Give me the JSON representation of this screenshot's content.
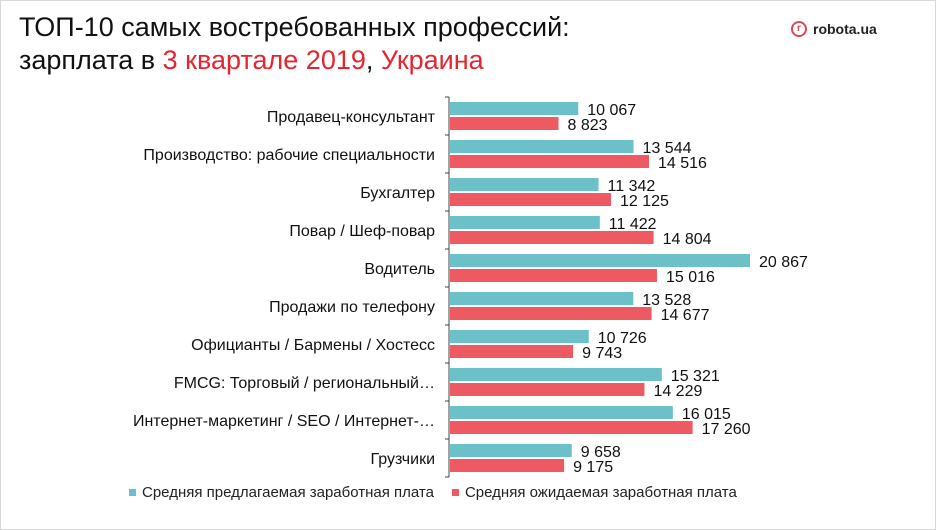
{
  "title": {
    "line1": "ТОП-10 самых востребованных профессий:",
    "line2_prefix": "зарплата в ",
    "line2_highlight1": "3 квартале 2019",
    "line2_sep": ", ",
    "line2_highlight2": "Украина"
  },
  "logo": {
    "text": "robota.ua",
    "mark": "r"
  },
  "colors": {
    "offered": "#6cc0c8",
    "expected": "#ee5a62",
    "highlight": "#e3262f"
  },
  "chart_data": {
    "type": "bar",
    "orientation": "horizontal",
    "categories": [
      "Продавец-консультант",
      "Производство: рабочие специальности",
      "Бухгалтер",
      "Повар / Шеф-повар",
      "Водитель",
      "Продажи по телефону",
      "Официанты / Бармены / Хостесс",
      "FMCG: Торговый / региональный…",
      "Интернет-маркетинг / SEO / Интернет-…",
      "Грузчики"
    ],
    "series": [
      {
        "name": "Средняя предлагаемая заработная плата",
        "values": [
          10067,
          13544,
          11342,
          11422,
          20867,
          13528,
          10726,
          15321,
          16015,
          9658
        ],
        "labels": [
          "10 067",
          "13 544",
          "11 342",
          "11 422",
          "20 867",
          "13 528",
          "10 726",
          "15 321",
          "16 015",
          "9 658"
        ]
      },
      {
        "name": "Средняя ожидаемая заработная плата",
        "values": [
          8823,
          14516,
          12125,
          14804,
          15016,
          14677,
          9743,
          14229,
          17260,
          9175
        ],
        "labels": [
          "8 823",
          "14 516",
          "12 125",
          "14 804",
          "15 016",
          "14 677",
          "9 743",
          "14 229",
          "17 260",
          "9 175"
        ]
      }
    ],
    "xlim": [
      2000,
      22000
    ],
    "grid": false,
    "legend": "bottom"
  }
}
